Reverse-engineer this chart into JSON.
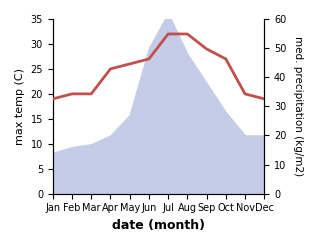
{
  "months": [
    "Jan",
    "Feb",
    "Mar",
    "Apr",
    "May",
    "Jun",
    "Jul",
    "Aug",
    "Sep",
    "Oct",
    "Nov",
    "Dec"
  ],
  "temperature": [
    19,
    20,
    20,
    25,
    26,
    27,
    32,
    32,
    29,
    27,
    20,
    19
  ],
  "precipitation": [
    14,
    16,
    17,
    20,
    27,
    50,
    62,
    48,
    38,
    28,
    20,
    20
  ],
  "temp_color": "#c0504d",
  "precip_fill_color": "#c5cce8",
  "left_ylim": [
    0,
    35
  ],
  "right_ylim": [
    0,
    60
  ],
  "left_yticks": [
    0,
    5,
    10,
    15,
    20,
    25,
    30,
    35
  ],
  "right_yticks": [
    0,
    10,
    20,
    30,
    40,
    50,
    60
  ],
  "left_ylabel": "max temp (C)",
  "right_ylabel": "med. precipitation (kg/m2)",
  "xlabel": "date (month)",
  "figsize": [
    3.18,
    2.47
  ],
  "dpi": 100
}
